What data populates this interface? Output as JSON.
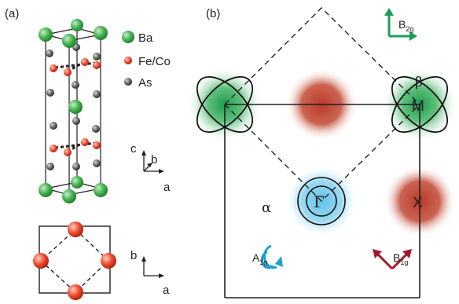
{
  "panel_a": {
    "label": "(a)",
    "legend": [
      {
        "name": "Ba",
        "color": "#3aa64a"
      },
      {
        "name": "Fe/Co",
        "color": "#e8402b"
      },
      {
        "name": "As",
        "color": "#555555"
      }
    ],
    "axes_top": {
      "c": "c",
      "b": "b",
      "a": "a"
    },
    "axes_bottom": {
      "b": "b",
      "a": "a"
    }
  },
  "panel_b": {
    "label": "(b)",
    "alpha": "α",
    "beta": "β",
    "gamma": "Γ",
    "M": "M",
    "X": "X",
    "B2g": {
      "main": "B",
      "sub": "2g",
      "color": "#1a9e5b"
    },
    "A1g": {
      "main": "A",
      "sub": "1g",
      "color": "#1aa0d8"
    },
    "B1g": {
      "main": "B",
      "sub": "1g",
      "color": "#a3182a"
    }
  }
}
